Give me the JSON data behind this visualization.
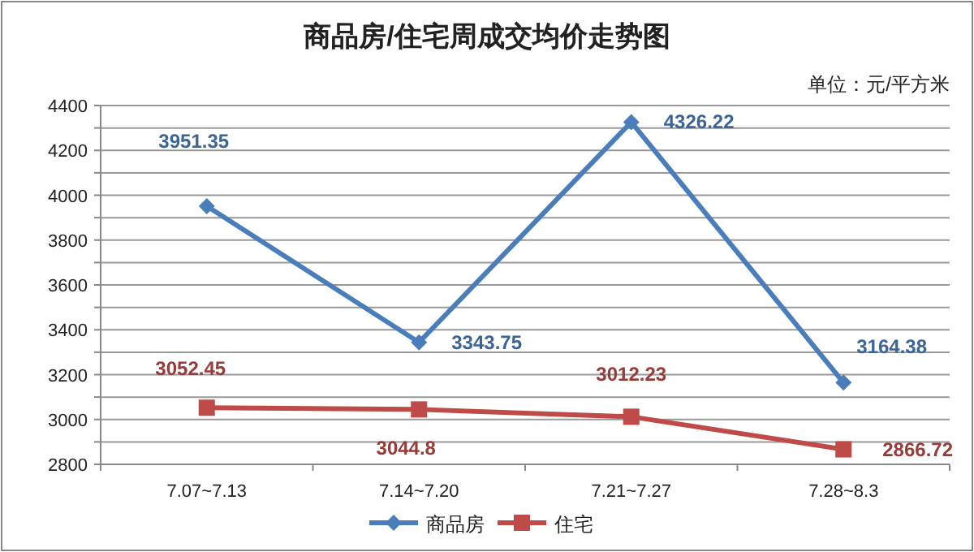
{
  "chart_data": {
    "type": "line",
    "title": "商品房/住宅周成交均价走势图",
    "annotations": [
      "单位：元/平方米"
    ],
    "categories": [
      "7.07~7.13",
      "7.14~7.20",
      "7.21~7.27",
      "7.28~8.3"
    ],
    "series": [
      {
        "name": "商品房",
        "color": "#4a7ebb",
        "marker": "diamond",
        "values": [
          3951.35,
          3343.75,
          4326.22,
          3164.38
        ]
      },
      {
        "name": "住宅",
        "color": "#be4b48",
        "marker": "square",
        "values": [
          3052.45,
          3044.8,
          3012.23,
          2866.72
        ]
      }
    ],
    "ylim": [
      2800,
      4400
    ],
    "yticks": [
      2800,
      {
        "value": 2900,
        "label": null
      },
      3000,
      {
        "value": 3100,
        "label": null
      },
      3200,
      {
        "value": 3300,
        "label": null
      },
      3400,
      {
        "value": 3500,
        "label": null
      },
      3600,
      {
        "value": 3700,
        "label": null
      },
      3800,
      {
        "value": 3900,
        "label": null
      },
      4000,
      {
        "value": 4100,
        "label": null
      },
      4200,
      {
        "value": 4300,
        "label": null
      },
      4400
    ],
    "grid": "y",
    "legend": "bottom",
    "data_labels": true
  }
}
